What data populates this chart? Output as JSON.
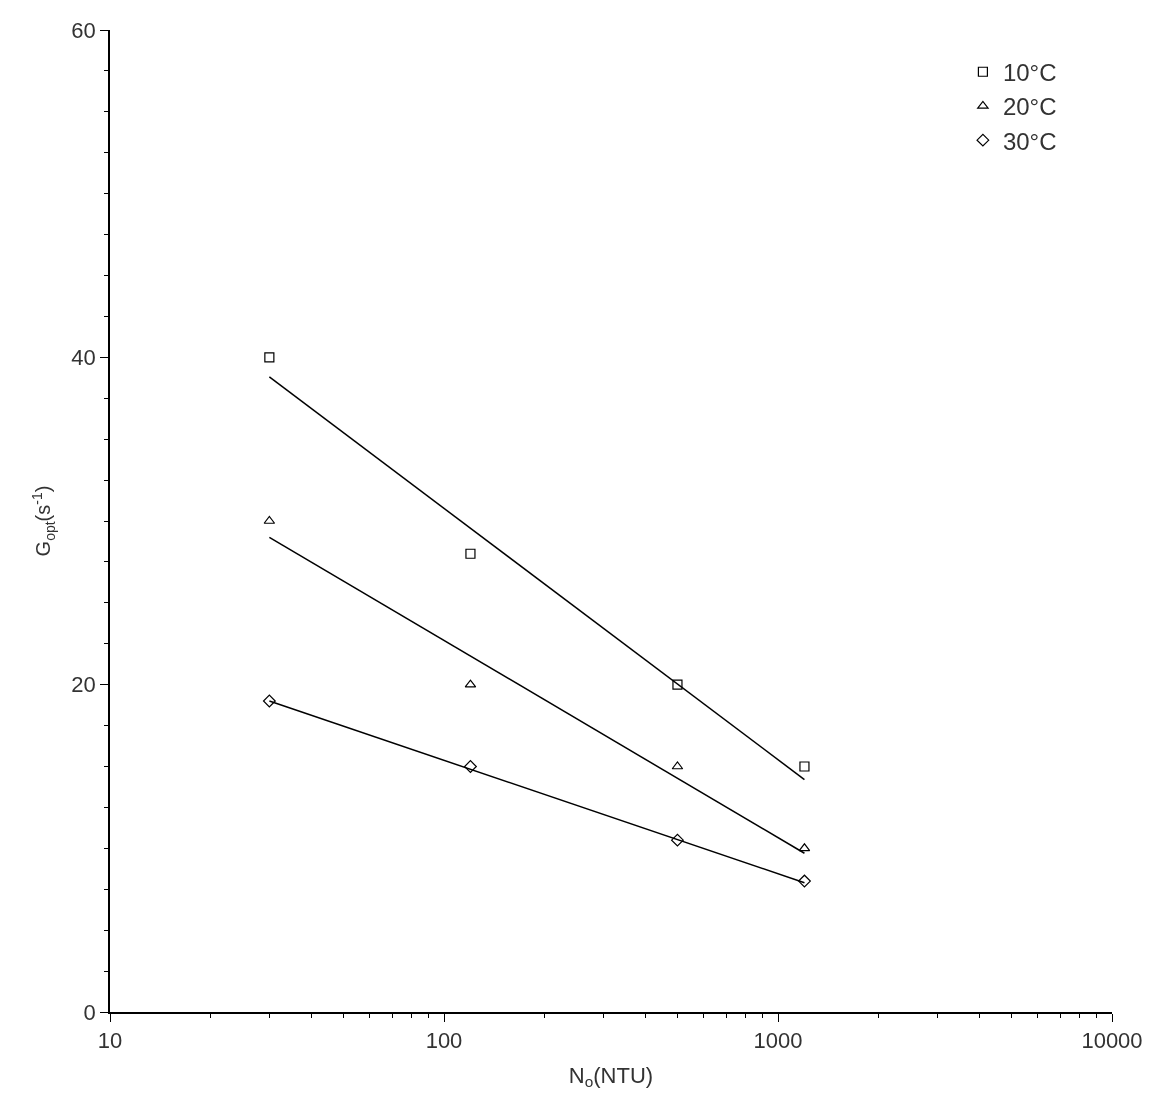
{
  "chart_data": {
    "type": "scatter",
    "xlabel": "N$_{o}$(NTU)",
    "ylabel": "G$_{opt}$(s$^{-1}$)",
    "log": "x",
    "xlim": [
      10,
      10000
    ],
    "xticks": [
      10,
      100,
      1000,
      10000
    ],
    "ylim": [
      0,
      60
    ],
    "yticks": [
      0,
      20,
      40,
      60
    ],
    "grid": false,
    "legend": "top right",
    "series": [
      {
        "name": "10°C",
        "marker": "square",
        "color": "#000000",
        "x": [
          30,
          120,
          500,
          1200
        ],
        "values": [
          40,
          28,
          20,
          15
        ]
      },
      {
        "name": "20°C",
        "marker": "triangle",
        "color": "#000000",
        "x": [
          30,
          120,
          500,
          1200
        ],
        "values": [
          30,
          20,
          15,
          10
        ]
      },
      {
        "name": "30°C",
        "marker": "diamond",
        "color": "#000000",
        "x": [
          30,
          120,
          500,
          1200
        ],
        "values": [
          19,
          15,
          10.5,
          8
        ]
      },
      {
        "type": "line",
        "marker": "none",
        "line_style": "solid",
        "color": "#000000",
        "x": [
          30,
          1200
        ],
        "values": [
          38.8,
          14.2
        ]
      },
      {
        "type": "line",
        "marker": "none",
        "line_style": "solid",
        "color": "#000000",
        "x": [
          30,
          1200
        ],
        "values": [
          29,
          9.7
        ]
      },
      {
        "type": "line",
        "marker": "none",
        "line_style": "solid",
        "color": "#000000",
        "x": [
          30,
          1200
        ],
        "values": [
          19,
          7.9
        ]
      }
    ]
  }
}
